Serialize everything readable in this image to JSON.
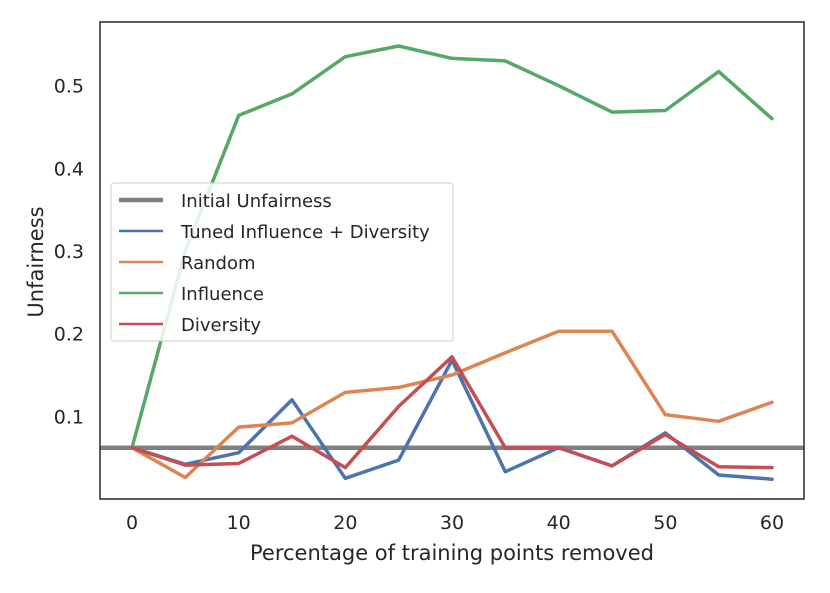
{
  "chart_data": {
    "type": "line",
    "title": "",
    "xlabel": "Percentage of training points removed",
    "ylabel": "Unfairness",
    "xlim": [
      -3,
      63
    ],
    "ylim": [
      0.0,
      0.577
    ],
    "x_ticks": [
      0,
      10,
      20,
      30,
      40,
      50,
      60
    ],
    "y_ticks": [
      0.1,
      0.2,
      0.3,
      0.4,
      0.5
    ],
    "x": [
      0,
      5,
      10,
      15,
      20,
      25,
      30,
      35,
      40,
      45,
      50,
      55,
      60
    ],
    "grid": false,
    "legend_position": "center-left",
    "reference_line": {
      "name": "Initial Unfairness",
      "value": 0.062,
      "color": "#808080"
    },
    "series": [
      {
        "name": "Tuned Influence + Diversity",
        "color": "#4c72b0",
        "values": [
          0.062,
          0.042,
          0.056,
          0.12,
          0.025,
          0.047,
          0.168,
          0.033,
          0.062,
          0.04,
          0.08,
          0.029,
          0.024
        ]
      },
      {
        "name": "Random",
        "color": "#dd8452",
        "values": [
          0.062,
          0.026,
          0.087,
          0.092,
          0.129,
          0.135,
          0.15,
          0.177,
          0.203,
          0.203,
          0.102,
          0.094,
          0.117
        ]
      },
      {
        "name": "Influence",
        "color": "#55a868",
        "values": [
          0.062,
          0.3,
          0.464,
          0.49,
          0.535,
          0.548,
          0.533,
          0.53,
          0.5,
          0.468,
          0.47,
          0.517,
          0.46
        ]
      },
      {
        "name": "Diversity",
        "color": "#c44e52",
        "values": [
          0.062,
          0.041,
          0.043,
          0.076,
          0.038,
          0.112,
          0.172,
          0.062,
          0.062,
          0.04,
          0.078,
          0.039,
          0.038
        ]
      }
    ]
  }
}
